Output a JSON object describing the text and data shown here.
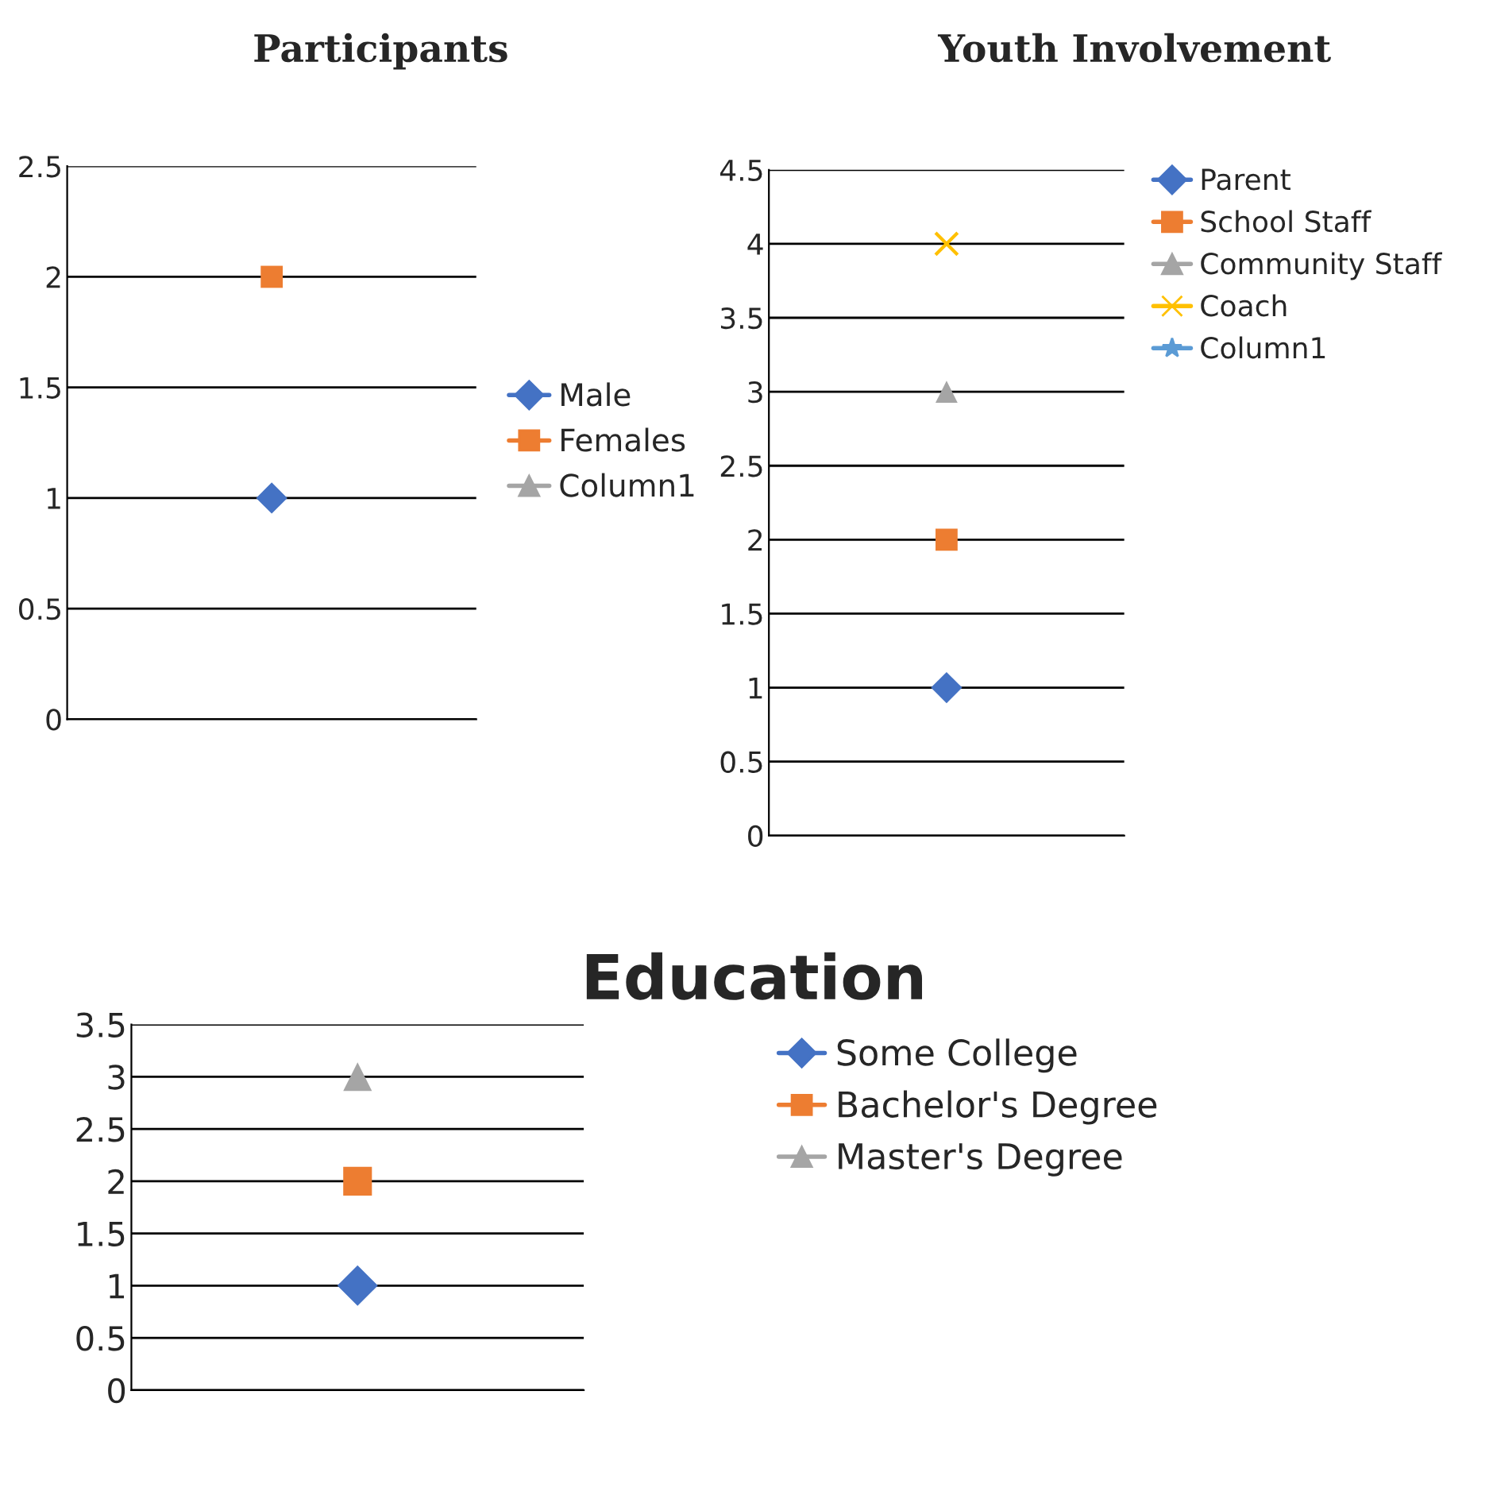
{
  "chart_data": [
    {
      "type": "scatter",
      "title": "Participants",
      "categories": [
        null
      ],
      "ylim": [
        0,
        2.5
      ],
      "yticks": [
        0,
        0.5,
        1,
        1.5,
        2,
        2.5
      ],
      "grid": "y",
      "legend": "right",
      "tick_labels": "y",
      "series": [
        {
          "name": "Male",
          "color": "#4472c4",
          "marker": "diamond",
          "values": [
            1
          ]
        },
        {
          "name": "Females",
          "color": "#ed7d31",
          "marker": "square",
          "values": [
            2
          ]
        },
        {
          "name": "Column1",
          "color": "#a5a5a5",
          "marker": "triangle",
          "values": [
            null
          ]
        }
      ]
    },
    {
      "type": "scatter",
      "title": "Youth Involvement",
      "categories": [
        null
      ],
      "ylim": [
        0,
        4.5
      ],
      "yticks": [
        0,
        0.5,
        1,
        1.5,
        2,
        2.5,
        3,
        3.5,
        4,
        4.5
      ],
      "grid": "y",
      "legend": "right",
      "tick_labels": "y",
      "series": [
        {
          "name": "Parent",
          "color": "#4472c4",
          "marker": "diamond",
          "values": [
            1
          ]
        },
        {
          "name": "School Staff",
          "color": "#ed7d31",
          "marker": "square",
          "values": [
            2
          ]
        },
        {
          "name": "Community Staff",
          "color": "#a5a5a5",
          "marker": "triangle",
          "values": [
            3
          ]
        },
        {
          "name": "Coach",
          "color": "#ffc000",
          "marker": "cross",
          "values": [
            4
          ]
        },
        {
          "name": "Column1",
          "color": "#5b9bd5",
          "marker": "star",
          "values": [
            null
          ]
        }
      ]
    },
    {
      "type": "scatter",
      "title": "Education",
      "categories": [
        null
      ],
      "ylim": [
        0,
        3.5
      ],
      "yticks": [
        0,
        0.5,
        1,
        1.5,
        2,
        2.5,
        3,
        3.5
      ],
      "grid": "y",
      "legend": "right",
      "tick_labels": "y",
      "series": [
        {
          "name": "Some College",
          "color": "#4472c4",
          "marker": "diamond",
          "values": [
            1
          ]
        },
        {
          "name": "Bachelor's Degree",
          "color": "#ed7d31",
          "marker": "square",
          "values": [
            2
          ]
        },
        {
          "name": "Master's Degree",
          "color": "#a5a5a5",
          "marker": "triangle",
          "values": [
            3
          ]
        }
      ]
    }
  ]
}
